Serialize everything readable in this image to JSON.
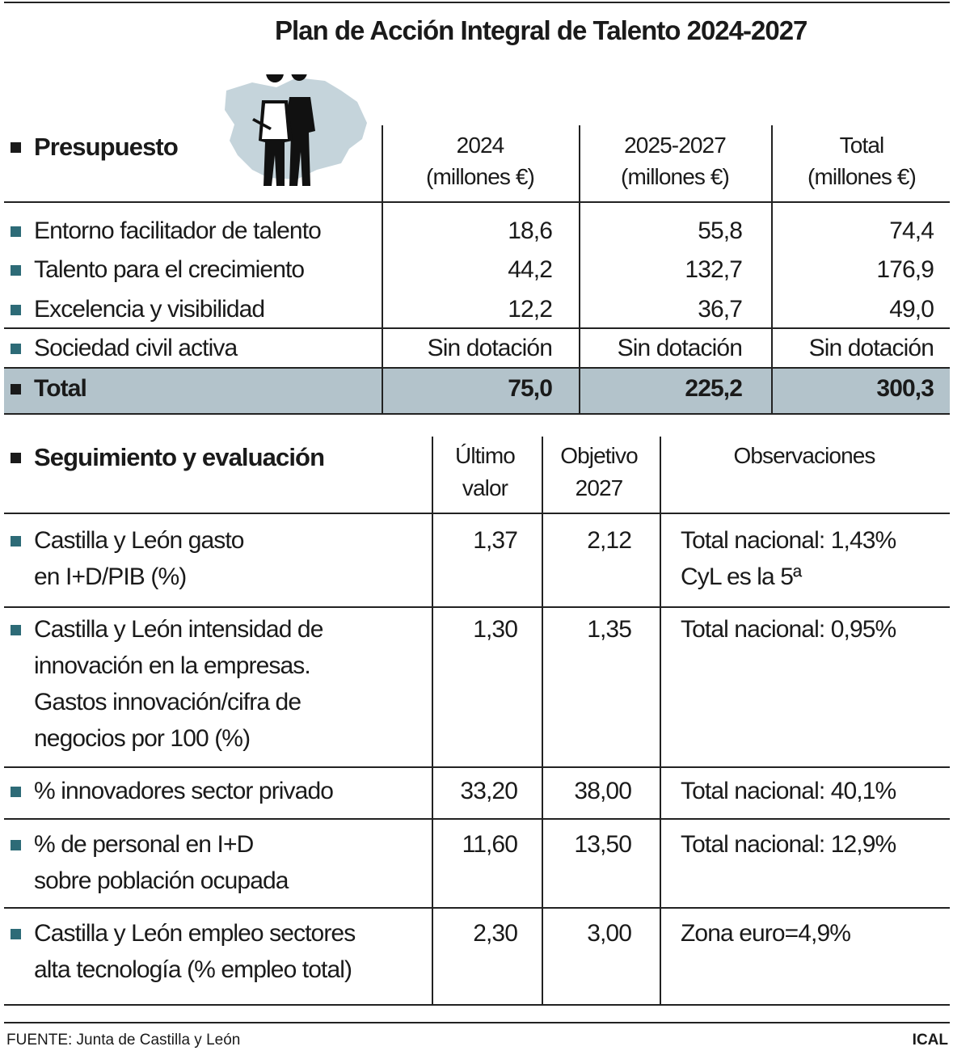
{
  "header": {
    "title": "Plan de Acción Integral de Talento 2024-2027"
  },
  "budget": {
    "title": "Presupuesto",
    "columns": [
      [
        "2024",
        "(millones €)"
      ],
      [
        "2025-2027",
        "(millones €)"
      ],
      [
        "Total",
        "(millones €)"
      ]
    ],
    "rows": [
      {
        "label": "Entorno facilitador de talento",
        "values": [
          "18,6",
          "55,8",
          "74,4"
        ]
      },
      {
        "label": "Talento para el crecimiento",
        "values": [
          "44,2",
          "132,7",
          "176,9"
        ]
      },
      {
        "label": "Excelencia y visibilidad",
        "values": [
          "12,2",
          "36,7",
          "49,0"
        ]
      },
      {
        "label": "Sociedad civil activa",
        "values": [
          "Sin dotación",
          "Sin dotación",
          "Sin dotación"
        ]
      }
    ],
    "total": {
      "label": "Total",
      "values": [
        "75,0",
        "225,2",
        "300,3"
      ]
    }
  },
  "monitoring": {
    "title": "Seguimiento y evaluación",
    "columns": [
      [
        "Último",
        "valor"
      ],
      [
        "Objetivo",
        "2027"
      ],
      [
        "Observaciones"
      ]
    ],
    "rows": [
      {
        "label": [
          "Castilla y León gasto",
          "en I+D/PIB (%)"
        ],
        "last": "1,37",
        "target": "2,12",
        "notes": [
          "Total nacional: 1,43%",
          "CyL es la 5ª"
        ]
      },
      {
        "label": [
          "Castilla y León intensidad de",
          "innovación en la empresas.",
          "Gastos innovación/cifra de",
          "negocios por 100 (%)"
        ],
        "last": "1,30",
        "target": "1,35",
        "notes": [
          "Total nacional: 0,95%"
        ]
      },
      {
        "label": [
          "% innovadores sector privado"
        ],
        "last": "33,20",
        "target": "38,00",
        "notes": [
          "Total nacional: 40,1%"
        ]
      },
      {
        "label": [
          "% de personal en I+D",
          "sobre población ocupada"
        ],
        "last": "11,60",
        "target": "13,50",
        "notes": [
          "Total nacional: 12,9%"
        ]
      },
      {
        "label": [
          "Castilla y León empleo sectores",
          "alta tecnología (% empleo total)"
        ],
        "last": "2,30",
        "target": "3,00",
        "notes": [
          "Zona euro=4,9%"
        ]
      }
    ]
  },
  "footer": {
    "source": "FUENTE: Junta de Castilla y León",
    "credit": "ICAL"
  }
}
